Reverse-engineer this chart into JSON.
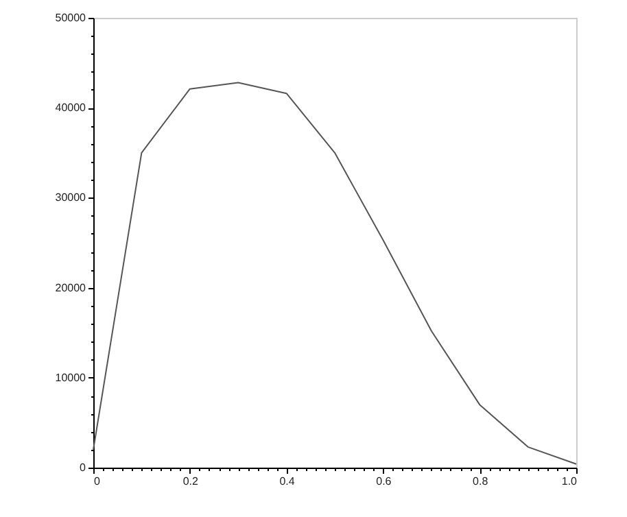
{
  "chart_data": {
    "type": "line",
    "x": [
      0,
      0.1,
      0.2,
      0.3,
      0.4,
      0.5,
      0.6,
      0.7,
      0.8,
      0.9,
      1.0
    ],
    "series": [
      {
        "color": "#555555",
        "values": [
          2000,
          35000,
          42100,
          42800,
          41600,
          35000,
          25300,
          15200,
          7000,
          2300,
          400
        ]
      }
    ],
    "xlim": [
      0,
      1
    ],
    "xticks": [
      0,
      {
        "value": 0.02,
        "label": null
      },
      {
        "value": 0.04,
        "label": null
      },
      {
        "value": 0.06,
        "label": null
      },
      {
        "value": 0.08,
        "label": null
      },
      {
        "value": 0.1,
        "label": null
      },
      {
        "value": 0.12,
        "label": null
      },
      {
        "value": 0.14,
        "label": null
      },
      {
        "value": 0.16,
        "label": null
      },
      {
        "value": 0.18,
        "label": null
      },
      0.2,
      {
        "value": 0.22,
        "label": null
      },
      {
        "value": 0.24,
        "label": null
      },
      {
        "value": 0.26,
        "label": null
      },
      {
        "value": 0.28,
        "label": null
      },
      {
        "value": 0.3,
        "label": null
      },
      {
        "value": 0.32,
        "label": null
      },
      {
        "value": 0.34,
        "label": null
      },
      {
        "value": 0.36,
        "label": null
      },
      {
        "value": 0.38,
        "label": null
      },
      0.4,
      {
        "value": 0.42,
        "label": null
      },
      {
        "value": 0.44,
        "label": null
      },
      {
        "value": 0.46,
        "label": null
      },
      {
        "value": 0.48,
        "label": null
      },
      {
        "value": 0.5,
        "label": null
      },
      {
        "value": 0.52,
        "label": null
      },
      {
        "value": 0.54,
        "label": null
      },
      {
        "value": 0.56,
        "label": null
      },
      {
        "value": 0.58,
        "label": null
      },
      0.6,
      {
        "value": 0.62,
        "label": null
      },
      {
        "value": 0.64,
        "label": null
      },
      {
        "value": 0.66,
        "label": null
      },
      {
        "value": 0.68,
        "label": null
      },
      {
        "value": 0.7,
        "label": null
      },
      {
        "value": 0.72,
        "label": null
      },
      {
        "value": 0.74,
        "label": null
      },
      {
        "value": 0.76,
        "label": null
      },
      {
        "value": 0.78,
        "label": null
      },
      0.8,
      {
        "value": 0.82,
        "label": null
      },
      {
        "value": 0.84,
        "label": null
      },
      {
        "value": 0.86,
        "label": null
      },
      {
        "value": 0.88,
        "label": null
      },
      {
        "value": 0.9,
        "label": null
      },
      {
        "value": 0.92,
        "label": null
      },
      {
        "value": 0.94,
        "label": null
      },
      {
        "value": 0.96,
        "label": null
      },
      {
        "value": 0.98,
        "label": null
      },
      {
        "value": 1,
        "label": "1.0"
      }
    ],
    "ylim": [
      0,
      50000
    ],
    "yticks": [
      0,
      {
        "value": 2000,
        "label": null
      },
      {
        "value": 4000,
        "label": null
      },
      {
        "value": 6000,
        "label": null
      },
      {
        "value": 8000,
        "label": null
      },
      10000,
      {
        "value": 12000,
        "label": null
      },
      {
        "value": 14000,
        "label": null
      },
      {
        "value": 16000,
        "label": null
      },
      {
        "value": 18000,
        "label": null
      },
      20000,
      {
        "value": 22000,
        "label": null
      },
      {
        "value": 24000,
        "label": null
      },
      {
        "value": 26000,
        "label": null
      },
      {
        "value": 28000,
        "label": null
      },
      30000,
      {
        "value": 32000,
        "label": null
      },
      {
        "value": 34000,
        "label": null
      },
      {
        "value": 36000,
        "label": null
      },
      {
        "value": 38000,
        "label": null
      },
      40000,
      {
        "value": 42000,
        "label": null
      },
      {
        "value": 44000,
        "label": null
      },
      {
        "value": 46000,
        "label": null
      },
      {
        "value": 48000,
        "label": null
      },
      50000
    ],
    "grid": false,
    "marker": "none",
    "line_style": "solid"
  }
}
